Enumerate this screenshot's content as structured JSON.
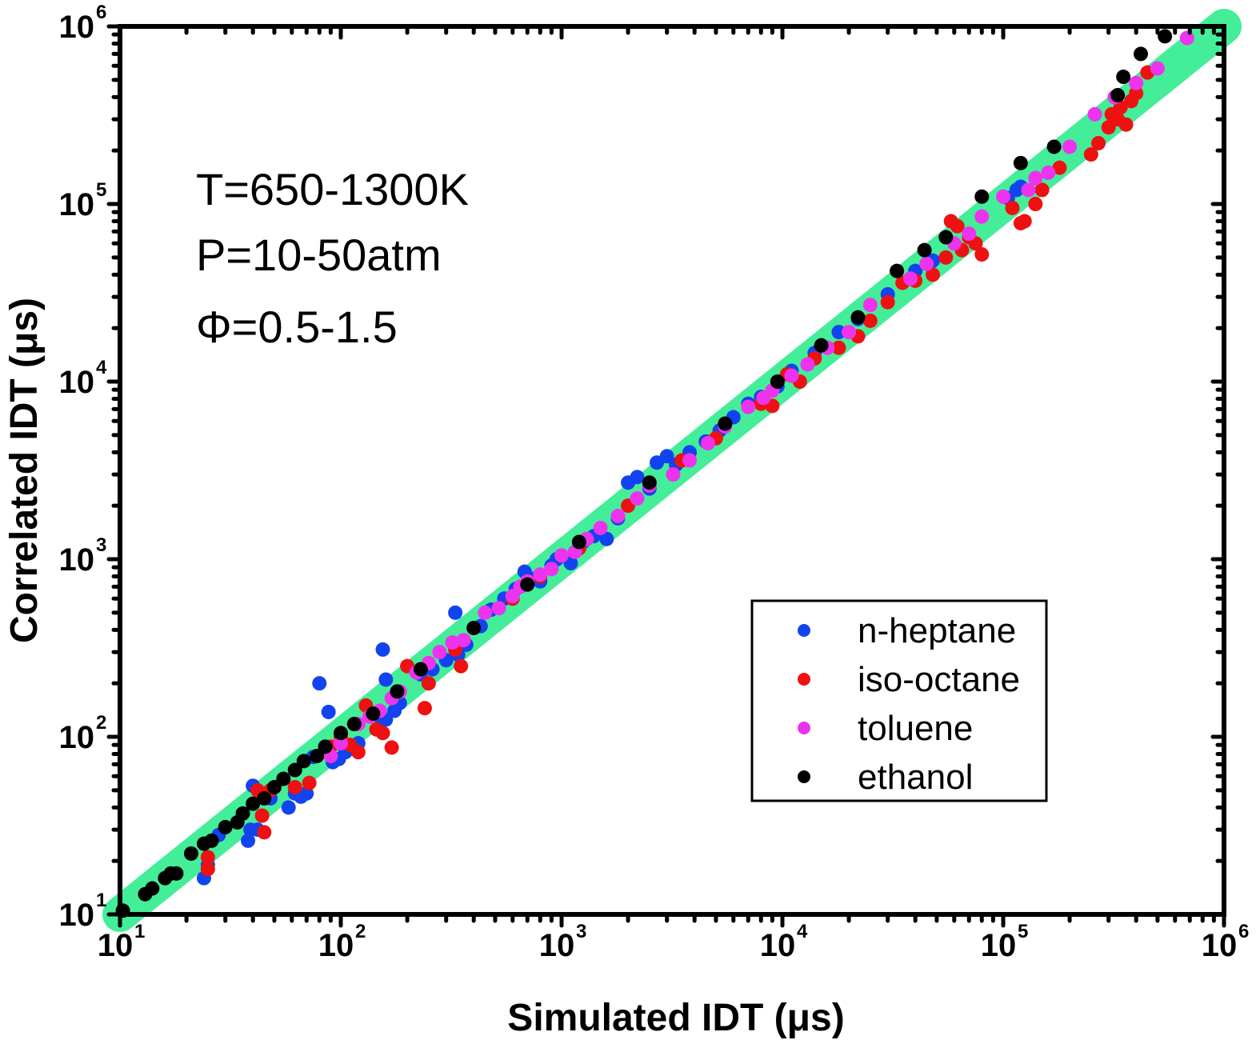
{
  "chart_data": {
    "type": "scatter",
    "title": "",
    "xlabel": "Simulated IDT (μs)",
    "ylabel": "Correlated IDT (μs)",
    "xscale": "log",
    "yscale": "log",
    "xlim": [
      10,
      1000000
    ],
    "ylim": [
      10,
      1000000
    ],
    "x_ticks": [
      {
        "base": "10",
        "exp": "1",
        "value": 10
      },
      {
        "base": "10",
        "exp": "2",
        "value": 100
      },
      {
        "base": "10",
        "exp": "3",
        "value": 1000
      },
      {
        "base": "10",
        "exp": "4",
        "value": 10000
      },
      {
        "base": "10",
        "exp": "5",
        "value": 100000
      },
      {
        "base": "10",
        "exp": "6",
        "value": 1000000
      }
    ],
    "y_ticks": [
      {
        "base": "10",
        "exp": "1",
        "value": 10
      },
      {
        "base": "10",
        "exp": "2",
        "value": 100
      },
      {
        "base": "10",
        "exp": "3",
        "value": 1000
      },
      {
        "base": "10",
        "exp": "4",
        "value": 10000
      },
      {
        "base": "10",
        "exp": "5",
        "value": 100000
      },
      {
        "base": "10",
        "exp": "6",
        "value": 1000000
      }
    ],
    "grid": false,
    "legend_position": "bottom-right",
    "annotations": [
      "T=650-1300K",
      "P=10-50atm",
      "Φ=0.5-1.5"
    ],
    "reference_line": {
      "name": "y=x",
      "color": "#44ee99",
      "from": [
        10,
        10
      ],
      "to": [
        1000000,
        1000000
      ]
    },
    "series": [
      {
        "name": "n-heptane",
        "color": "#1144ee",
        "points": [
          [
            24,
            16
          ],
          [
            25,
            19
          ],
          [
            28,
            28
          ],
          [
            38,
            26
          ],
          [
            39,
            30
          ],
          [
            40,
            53
          ],
          [
            42,
            30
          ],
          [
            48,
            45
          ],
          [
            58,
            40
          ],
          [
            62,
            48
          ],
          [
            66,
            46
          ],
          [
            70,
            48
          ],
          [
            75,
            77
          ],
          [
            80,
            200
          ],
          [
            88,
            138
          ],
          [
            92,
            72
          ],
          [
            98,
            75
          ],
          [
            105,
            82
          ],
          [
            120,
            92
          ],
          [
            150,
            130
          ],
          [
            155,
            310
          ],
          [
            160,
            125
          ],
          [
            160,
            210
          ],
          [
            175,
            140
          ],
          [
            185,
            155
          ],
          [
            230,
            225
          ],
          [
            260,
            240
          ],
          [
            300,
            270
          ],
          [
            330,
            500
          ],
          [
            340,
            290
          ],
          [
            370,
            330
          ],
          [
            430,
            420
          ],
          [
            480,
            520
          ],
          [
            550,
            600
          ],
          [
            620,
            680
          ],
          [
            680,
            850
          ],
          [
            720,
            780
          ],
          [
            800,
            750
          ],
          [
            900,
            920
          ],
          [
            950,
            1000
          ],
          [
            1100,
            950
          ],
          [
            1250,
            1250
          ],
          [
            1400,
            1350
          ],
          [
            1600,
            1300
          ],
          [
            1800,
            1700
          ],
          [
            2000,
            2700
          ],
          [
            2200,
            2900
          ],
          [
            2500,
            2500
          ],
          [
            2700,
            3500
          ],
          [
            3000,
            3800
          ],
          [
            3300,
            3400
          ],
          [
            3800,
            4000
          ],
          [
            4500,
            4600
          ],
          [
            5200,
            5300
          ],
          [
            6000,
            6300
          ],
          [
            7000,
            7500
          ],
          [
            8000,
            8200
          ],
          [
            9500,
            9400
          ],
          [
            11000,
            11500
          ],
          [
            14000,
            14500
          ],
          [
            18000,
            19000
          ],
          [
            22000,
            22500
          ],
          [
            30000,
            31000
          ],
          [
            40000,
            42000
          ],
          [
            48000,
            48000
          ],
          [
            105000,
            108000
          ],
          [
            115000,
            120000
          ],
          [
            120000,
            125000
          ]
        ]
      },
      {
        "name": "iso-octane",
        "color": "#ee1111",
        "points": [
          [
            25,
            18
          ],
          [
            25,
            21
          ],
          [
            42,
            50
          ],
          [
            44,
            36
          ],
          [
            45,
            29
          ],
          [
            48,
            50
          ],
          [
            62,
            52
          ],
          [
            72,
            55
          ],
          [
            90,
            88
          ],
          [
            100,
            100
          ],
          [
            110,
            90
          ],
          [
            120,
            82
          ],
          [
            130,
            150
          ],
          [
            145,
            110
          ],
          [
            155,
            105
          ],
          [
            170,
            87
          ],
          [
            200,
            250
          ],
          [
            240,
            145
          ],
          [
            250,
            200
          ],
          [
            330,
            310
          ],
          [
            350,
            250
          ],
          [
            600,
            600
          ],
          [
            800,
            800
          ],
          [
            1200,
            1150
          ],
          [
            2000,
            2000
          ],
          [
            3500,
            3600
          ],
          [
            5000,
            4800
          ],
          [
            8000,
            7500
          ],
          [
            9000,
            7300
          ],
          [
            10500,
            11000
          ],
          [
            12000,
            10000
          ],
          [
            14000,
            13500
          ],
          [
            18000,
            15500
          ],
          [
            22000,
            18000
          ],
          [
            25000,
            22000
          ],
          [
            30000,
            28000
          ],
          [
            35000,
            36000
          ],
          [
            40000,
            37000
          ],
          [
            48000,
            40000
          ],
          [
            55000,
            50000
          ],
          [
            58000,
            80000
          ],
          [
            62000,
            75000
          ],
          [
            65000,
            55000
          ],
          [
            70000,
            65000
          ],
          [
            75000,
            60000
          ],
          [
            80000,
            52000
          ],
          [
            110000,
            95000
          ],
          [
            120000,
            78000
          ],
          [
            125000,
            80000
          ],
          [
            140000,
            100000
          ],
          [
            150000,
            120000
          ],
          [
            180000,
            160000
          ],
          [
            250000,
            190000
          ],
          [
            270000,
            220000
          ],
          [
            300000,
            270000
          ],
          [
            310000,
            320000
          ],
          [
            330000,
            300000
          ],
          [
            340000,
            350000
          ],
          [
            360000,
            280000
          ],
          [
            380000,
            380000
          ],
          [
            400000,
            420000
          ],
          [
            450000,
            550000
          ]
        ]
      },
      {
        "name": "toluene",
        "color": "#ee33ee",
        "points": [
          [
            90,
            78
          ],
          [
            100,
            92
          ],
          [
            120,
            118
          ],
          [
            135,
            130
          ],
          [
            150,
            140
          ],
          [
            170,
            165
          ],
          [
            185,
            180
          ],
          [
            220,
            230
          ],
          [
            250,
            260
          ],
          [
            280,
            300
          ],
          [
            320,
            340
          ],
          [
            360,
            350
          ],
          [
            450,
            500
          ],
          [
            520,
            530
          ],
          [
            600,
            620
          ],
          [
            650,
            700
          ],
          [
            700,
            750
          ],
          [
            800,
            820
          ],
          [
            900,
            880
          ],
          [
            1000,
            1050
          ],
          [
            1150,
            1100
          ],
          [
            1300,
            1300
          ],
          [
            1500,
            1500
          ],
          [
            1800,
            1750
          ],
          [
            2200,
            2200
          ],
          [
            2500,
            2600
          ],
          [
            3200,
            3000
          ],
          [
            3800,
            3600
          ],
          [
            4600,
            4500
          ],
          [
            5500,
            5600
          ],
          [
            7000,
            7200
          ],
          [
            8200,
            8100
          ],
          [
            9000,
            8900
          ],
          [
            11000,
            10800
          ],
          [
            13000,
            12500
          ],
          [
            16000,
            15500
          ],
          [
            20000,
            19000
          ],
          [
            25000,
            27000
          ],
          [
            38000,
            38000
          ],
          [
            45000,
            46000
          ],
          [
            60000,
            60000
          ],
          [
            70000,
            68000
          ],
          [
            80000,
            85000
          ],
          [
            100000,
            110000
          ],
          [
            130000,
            120000
          ],
          [
            140000,
            140000
          ],
          [
            160000,
            150000
          ],
          [
            200000,
            210000
          ],
          [
            260000,
            320000
          ],
          [
            320000,
            400000
          ],
          [
            400000,
            480000
          ],
          [
            500000,
            580000
          ],
          [
            680000,
            860000
          ]
        ]
      },
      {
        "name": "ethanol",
        "color": "#000000",
        "points": [
          [
            10.3,
            10.5
          ],
          [
            13,
            13
          ],
          [
            14,
            14
          ],
          [
            16,
            16
          ],
          [
            17,
            17
          ],
          [
            18,
            17
          ],
          [
            21,
            22
          ],
          [
            24,
            25
          ],
          [
            26,
            26
          ],
          [
            30,
            31
          ],
          [
            34,
            33
          ],
          [
            36,
            37
          ],
          [
            40,
            42
          ],
          [
            45,
            45
          ],
          [
            50,
            52
          ],
          [
            55,
            58
          ],
          [
            62,
            65
          ],
          [
            68,
            73
          ],
          [
            78,
            78
          ],
          [
            85,
            88
          ],
          [
            100,
            105
          ],
          [
            115,
            118
          ],
          [
            140,
            135
          ],
          [
            180,
            180
          ],
          [
            230,
            240
          ],
          [
            400,
            410
          ],
          [
            700,
            720
          ],
          [
            1200,
            1250
          ],
          [
            2500,
            2700
          ],
          [
            5500,
            5800
          ],
          [
            9500,
            10000
          ],
          [
            15000,
            16000
          ],
          [
            22000,
            23000
          ],
          [
            33000,
            42000
          ],
          [
            44000,
            55000
          ],
          [
            55000,
            65000
          ],
          [
            80000,
            110000
          ],
          [
            120000,
            170000
          ],
          [
            170000,
            210000
          ],
          [
            330000,
            410000
          ],
          [
            350000,
            520000
          ],
          [
            420000,
            700000
          ],
          [
            540000,
            880000
          ]
        ]
      }
    ]
  }
}
